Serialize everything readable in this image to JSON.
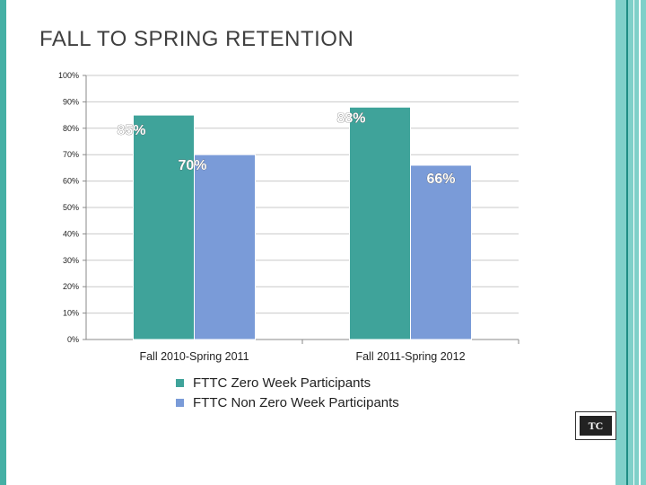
{
  "slide": {
    "title": "FALL TO SPRING RETENTION",
    "logo_text": "TC",
    "colors": {
      "accent_left": "#45b0a5",
      "accent_right": "#7fd0c9",
      "series1": "#3fa39a",
      "series2": "#7a9bd8",
      "data_label": "#ffffff"
    }
  },
  "chart_data": {
    "type": "bar",
    "categories": [
      "Fall 2010-Spring 2011",
      "Fall 2011-Spring 2012"
    ],
    "series": [
      {
        "name": "FTTC Zero Week Participants",
        "values": [
          85,
          88
        ],
        "labels": [
          "85%",
          "88%"
        ]
      },
      {
        "name": "FTTC Non Zero Week Participants",
        "values": [
          70,
          66
        ],
        "labels": [
          "70%",
          "66%"
        ]
      }
    ],
    "y_ticks": [
      "0%",
      "10%",
      "20%",
      "30%",
      "40%",
      "50%",
      "60%",
      "70%",
      "80%",
      "90%",
      "100%"
    ],
    "ylim": [
      0,
      100
    ],
    "grid": true,
    "legend_position": "bottom"
  }
}
